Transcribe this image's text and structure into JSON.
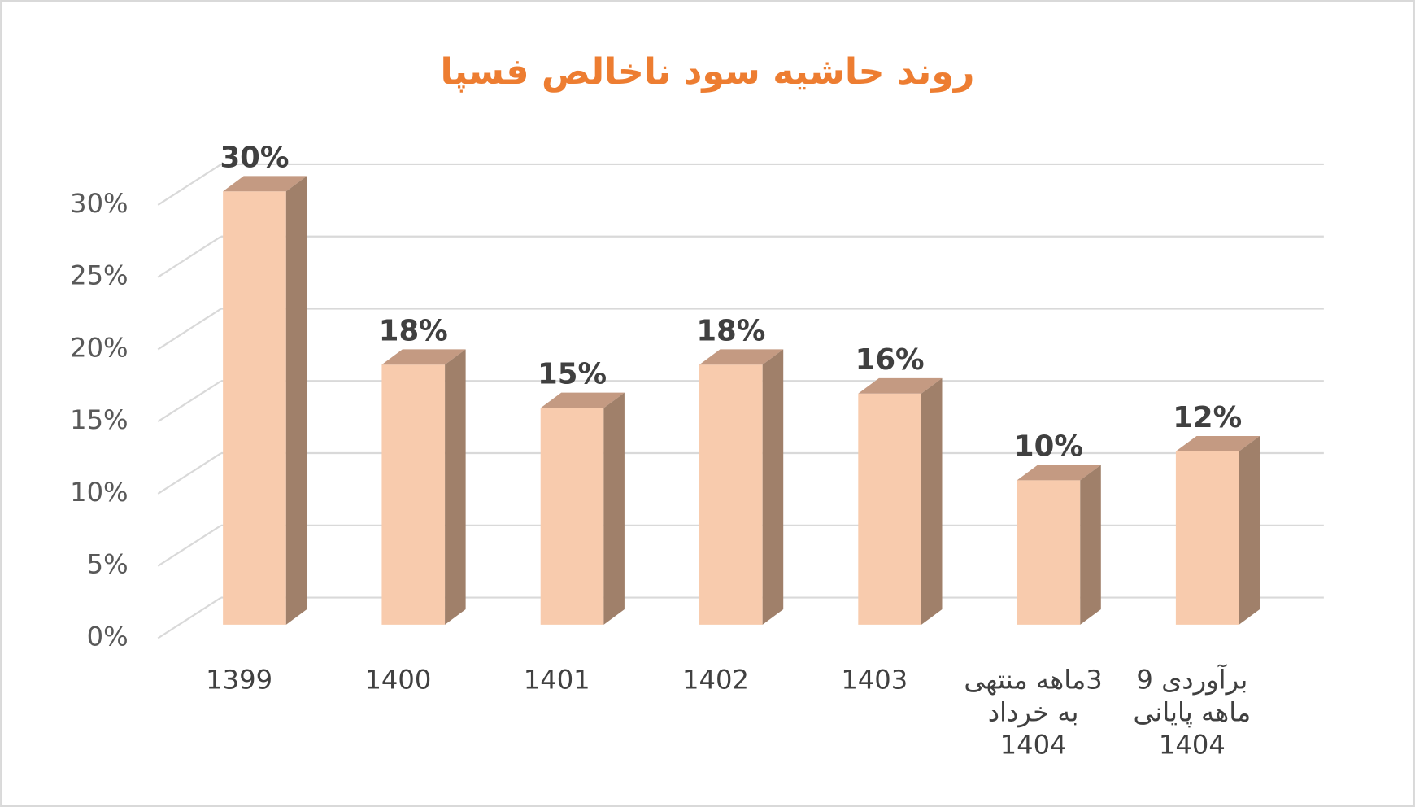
{
  "chart_data": {
    "type": "bar3d",
    "title": "روند حاشیه سود ناخالص فسپا",
    "categories": [
      "1399",
      "1400",
      "1401",
      "1402",
      "1403",
      "3ماهه منتهی به خرداد 1404",
      "برآوردی 9 ماهه پایانی 1404"
    ],
    "values": [
      30,
      18,
      15,
      18,
      16,
      10,
      12
    ],
    "value_labels": [
      "30%",
      "18%",
      "15%",
      "18%",
      "16%",
      "10%",
      "12%"
    ],
    "color": "#f8cbad",
    "ylim": [
      0,
      30
    ],
    "yticks": [
      {
        "value": 0,
        "label": "0%"
      },
      {
        "value": 5,
        "label": "5%"
      },
      {
        "value": 10,
        "label": "10%"
      },
      {
        "value": 15,
        "label": "15%"
      },
      {
        "value": 20,
        "label": "20%"
      },
      {
        "value": 25,
        "label": "25%"
      },
      {
        "value": 30,
        "label": "30%"
      }
    ],
    "grid": true
  }
}
